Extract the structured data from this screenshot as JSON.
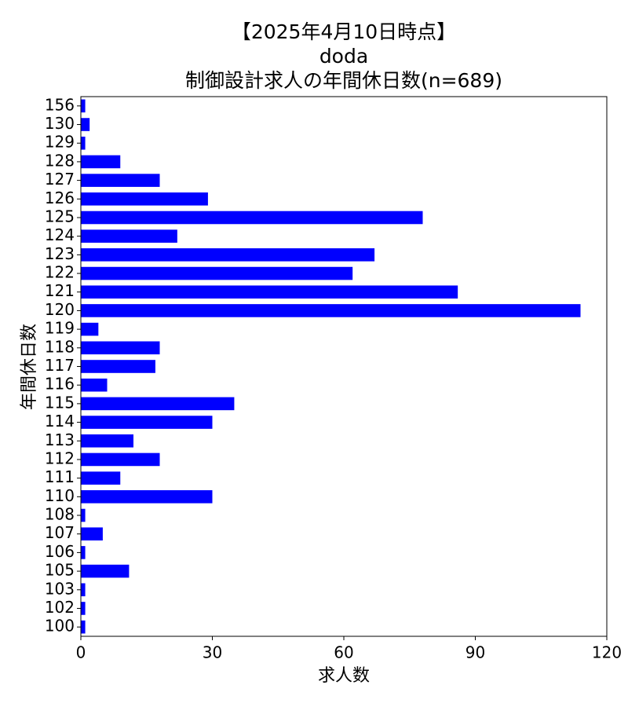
{
  "chart_data": {
    "type": "barh",
    "title": [
      "【2025年4月10日時点】",
      "doda",
      "制御設計求人の年間休日数(n=689)"
    ],
    "xlabel": "求人数",
    "ylabel": "年間休日数",
    "categories": [
      "100",
      "102",
      "103",
      "105",
      "106",
      "107",
      "108",
      "110",
      "111",
      "112",
      "113",
      "114",
      "115",
      "116",
      "117",
      "118",
      "119",
      "120",
      "121",
      "122",
      "123",
      "124",
      "125",
      "126",
      "127",
      "128",
      "129",
      "130",
      "156"
    ],
    "values": [
      1,
      1,
      1,
      11,
      1,
      5,
      1,
      30,
      9,
      18,
      12,
      30,
      35,
      6,
      17,
      18,
      4,
      114,
      86,
      62,
      67,
      22,
      78,
      29,
      18,
      9,
      1,
      2,
      1
    ],
    "color": "#0000ff",
    "xlim": [
      0,
      120
    ],
    "xticks": [
      0,
      30,
      60,
      90,
      120
    ]
  }
}
